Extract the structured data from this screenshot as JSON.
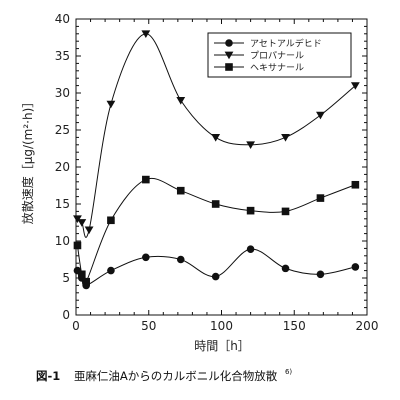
{
  "caption": {
    "figure_number": "図-1",
    "text": "亜麻仁油Aからのカルボニル化合物放散",
    "reference": "6)"
  },
  "chart_data": {
    "type": "line",
    "xlabel": "時間［h］",
    "ylabel": "放散速度［μg/(m²·h)］",
    "xlim": [
      0,
      200
    ],
    "ylim": [
      0,
      40
    ],
    "xticks": [
      0,
      50,
      100,
      150,
      200
    ],
    "yticks": [
      0,
      5,
      10,
      15,
      20,
      25,
      30,
      35,
      40
    ],
    "grid": false,
    "legend_position": "top-right",
    "series": [
      {
        "name": "アセトアルデヒド",
        "marker": "circle",
        "x": [
          1,
          4,
          7,
          24,
          48,
          72,
          96,
          120,
          144,
          168,
          192
        ],
        "y": [
          6.0,
          5.0,
          4.0,
          6.0,
          7.8,
          7.5,
          5.2,
          8.9,
          6.3,
          5.5,
          6.5
        ]
      },
      {
        "name": "プロパナール",
        "marker": "triangle-down",
        "x": [
          1,
          4,
          9,
          24,
          48,
          72,
          96,
          120,
          144,
          168,
          192
        ],
        "y": [
          13.0,
          12.5,
          11.5,
          28.5,
          38.0,
          29.0,
          24.0,
          23.0,
          24.0,
          27.0,
          31.0
        ]
      },
      {
        "name": "ヘキサナール",
        "marker": "square",
        "x": [
          1,
          4,
          7,
          24,
          48,
          72,
          96,
          120,
          144,
          168,
          192
        ],
        "y": [
          9.4,
          5.5,
          4.5,
          12.8,
          18.3,
          16.8,
          15.0,
          14.1,
          14.0,
          15.8,
          17.6
        ]
      }
    ]
  }
}
